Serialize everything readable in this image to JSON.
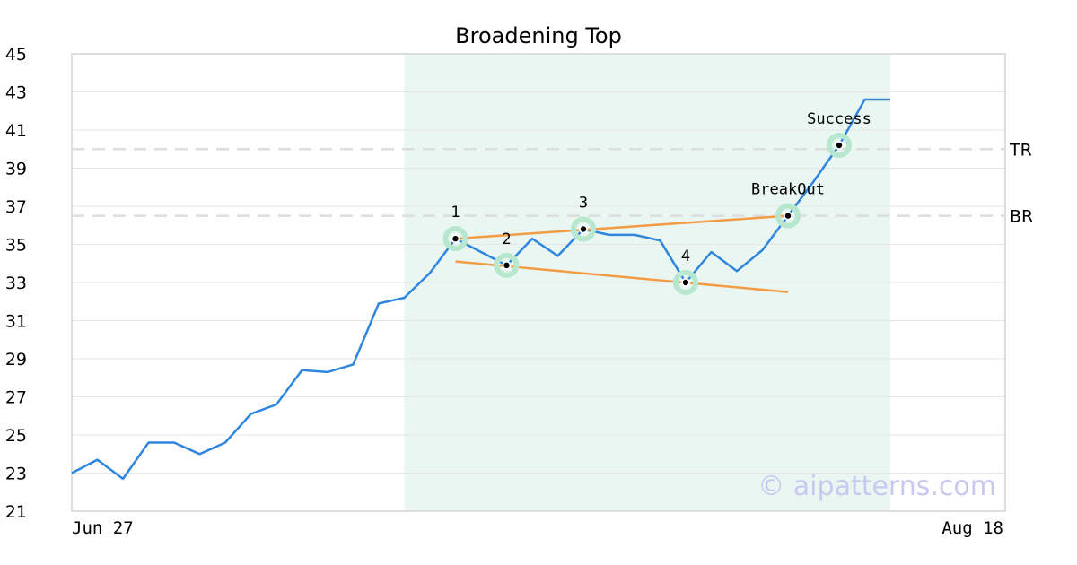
{
  "chart_data": {
    "type": "line",
    "title": "Broadening Top",
    "ylim": [
      21,
      45
    ],
    "yticks": [
      21,
      23,
      25,
      27,
      29,
      31,
      33,
      35,
      37,
      39,
      41,
      43,
      45
    ],
    "xtick_labels": [
      "Jun 27",
      "Aug 18"
    ],
    "grid": "horizontal",
    "series": [
      {
        "color": "#2e86de",
        "values": [
          23.0,
          23.7,
          22.7,
          24.6,
          24.6,
          24.0,
          24.6,
          26.1,
          26.6,
          28.4,
          28.3,
          28.7,
          31.9,
          32.2,
          33.5,
          35.3,
          34.6,
          33.9,
          35.3,
          34.4,
          35.8,
          35.5,
          35.5,
          35.2,
          33.0,
          34.6,
          33.6,
          34.7,
          36.5,
          38.3,
          40.2,
          42.6,
          42.6
        ]
      }
    ],
    "pattern_region": {
      "from_index": 13,
      "to_index": 32,
      "color": "#eaf6f1"
    },
    "trendlines": [
      {
        "color": "#f39c43",
        "from": {
          "index": 15,
          "value": 35.3
        },
        "to": {
          "index": 28,
          "value": 36.5
        }
      },
      {
        "color": "#f39c43",
        "from": {
          "index": 15,
          "value": 34.1
        },
        "to": {
          "index": 28,
          "value": 32.5
        }
      }
    ],
    "levels": [
      {
        "label": "TR",
        "value": 40.0
      },
      {
        "label": "BR",
        "value": 36.5
      }
    ],
    "points": [
      {
        "label": "1",
        "index": 15,
        "value": 35.3,
        "label_pos": "above"
      },
      {
        "label": "2",
        "index": 17,
        "value": 33.9,
        "label_pos": "above"
      },
      {
        "label": "3",
        "index": 20,
        "value": 35.8,
        "label_pos": "above"
      },
      {
        "label": "4",
        "index": 24,
        "value": 33.0,
        "label_pos": "above"
      },
      {
        "label": "BreakOut",
        "index": 28,
        "value": 36.5,
        "label_pos": "above"
      },
      {
        "label": "Success",
        "index": 30,
        "value": 40.2,
        "label_pos": "above"
      }
    ],
    "watermark": "© aipatterns.com"
  }
}
